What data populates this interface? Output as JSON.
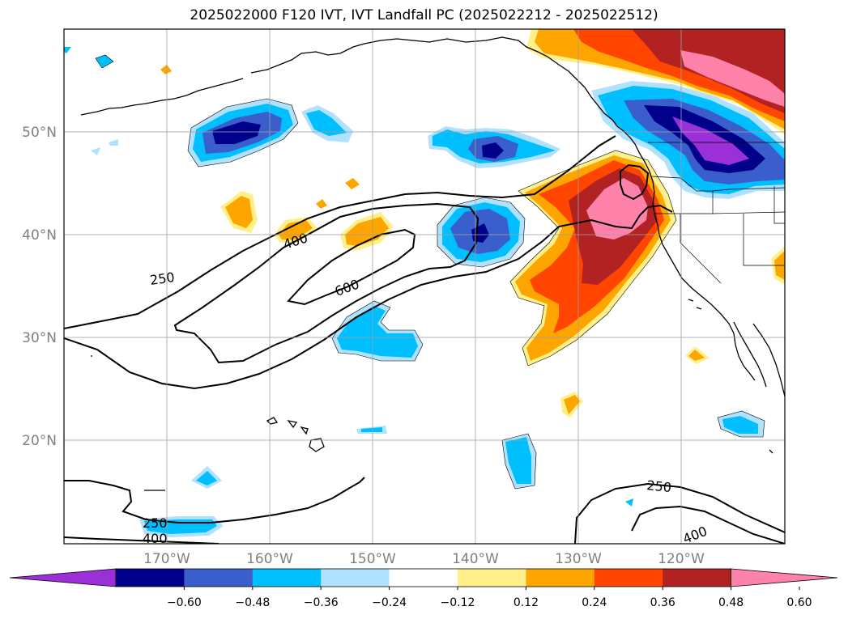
{
  "title": "2025022000 F120 IVT, IVT Landfall PC (2025022212 - 2025022512)",
  "axes": {
    "longitude_labels": [
      "170°W",
      "160°W",
      "150°W",
      "140°W",
      "130°W",
      "120°W"
    ],
    "latitude_labels": [
      "50°N",
      "40°N",
      "30°N",
      "20°N"
    ]
  },
  "contours": {
    "labels": [
      "250",
      "400",
      "600",
      "400",
      "250",
      "250",
      "400"
    ]
  },
  "colorbar": {
    "tick_labels": [
      "−0.60",
      "−0.48",
      "−0.36",
      "−0.24",
      "−0.12",
      "0.12",
      "0.24",
      "0.36",
      "0.48",
      "0.60"
    ],
    "colors": [
      "#9b30d8",
      "#00008b",
      "#3a5fcd",
      "#00bfff",
      "#b0e2ff",
      "#ffffff",
      "#fff08a",
      "#ffa500",
      "#ff4500",
      "#b22222",
      "#ff82ab"
    ],
    "extend": "both"
  },
  "chart_data": {
    "type": "heatmap",
    "title": "2025022000 F120 IVT, IVT Landfall PC (2025022212 - 2025022512)",
    "xlabel": "",
    "ylabel": "",
    "x_range": [
      -180,
      -110
    ],
    "y_range": [
      10,
      60
    ],
    "x_ticks": [
      "170°W",
      "160°W",
      "150°W",
      "140°W",
      "130°W",
      "120°W"
    ],
    "y_ticks": [
      "50°N",
      "40°N",
      "30°N",
      "20°N"
    ],
    "levels": [
      -0.6,
      -0.48,
      -0.36,
      -0.24,
      -0.12,
      0.12,
      0.24,
      0.36,
      0.48,
      0.6
    ],
    "ivt_contour_levels": [
      250,
      400,
      600
    ],
    "grid": true,
    "colorbar_position": "bottom"
  }
}
